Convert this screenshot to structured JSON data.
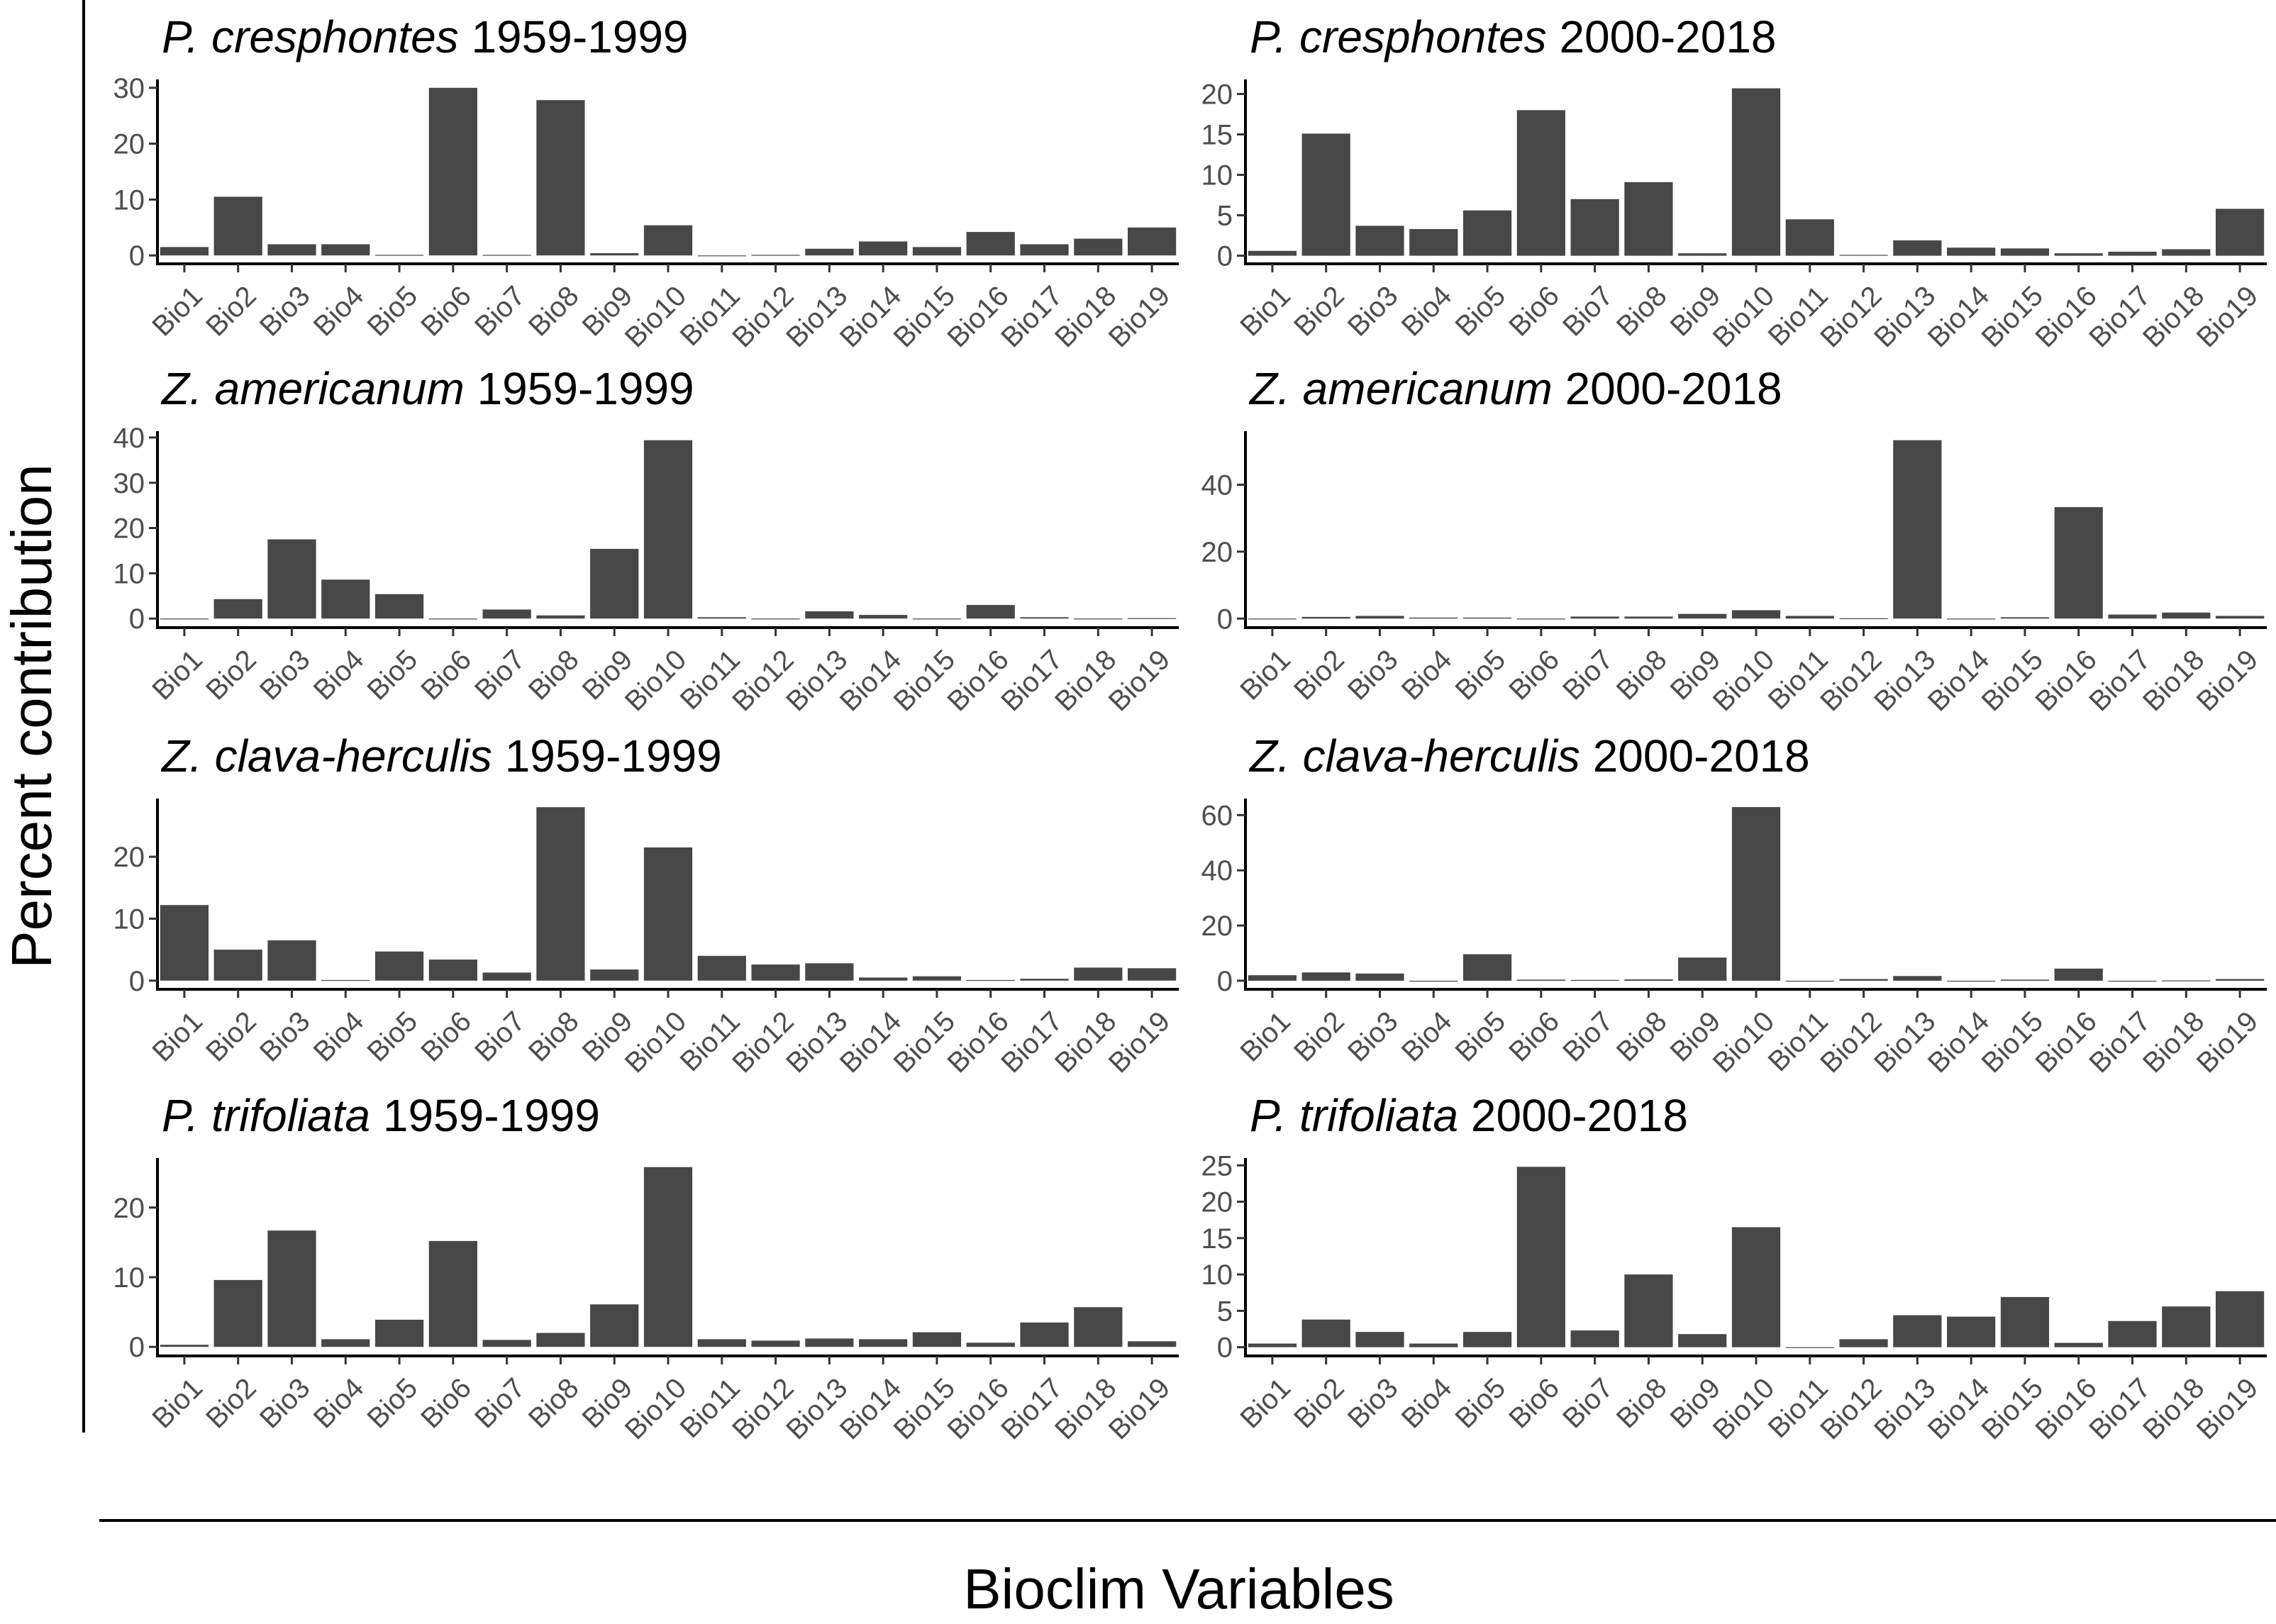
{
  "figure": {
    "ylabel": "Percent contribution",
    "xlabel": "Bioclim Variables",
    "bar_color": "#474747"
  },
  "chart_data": [
    {
      "type": "bar",
      "title_italic": "P. cresphontes",
      "title_rest": " 1959-1999",
      "categories": [
        "Bio1",
        "Bio2",
        "Bio3",
        "Bio4",
        "Bio5",
        "Bio6",
        "Bio7",
        "Bio8",
        "Bio9",
        "Bio10",
        "Bio11",
        "Bio12",
        "Bio13",
        "Bio14",
        "Bio15",
        "Bio16",
        "Bio17",
        "Bio18",
        "Bio19"
      ],
      "values": [
        1.5,
        10.5,
        2.0,
        2.0,
        0.1,
        30.0,
        0.1,
        27.8,
        0.4,
        5.4,
        0.0,
        0.1,
        1.2,
        2.5,
        1.5,
        4.2,
        2.0,
        3.0,
        5.0
      ],
      "yticks": [
        0,
        10,
        20,
        30
      ],
      "ylim": [
        -1.5,
        31.5
      ]
    },
    {
      "type": "bar",
      "title_italic": "P. cresphontes",
      "title_rest": " 2000-2018",
      "categories": [
        "Bio1",
        "Bio2",
        "Bio3",
        "Bio4",
        "Bio5",
        "Bio6",
        "Bio7",
        "Bio8",
        "Bio9",
        "Bio10",
        "Bio11",
        "Bio12",
        "Bio13",
        "Bio14",
        "Bio15",
        "Bio16",
        "Bio17",
        "Bio18",
        "Bio19"
      ],
      "values": [
        0.6,
        15.1,
        3.7,
        3.3,
        5.6,
        18.0,
        7.0,
        9.1,
        0.3,
        20.7,
        4.5,
        0.1,
        1.9,
        1.0,
        0.9,
        0.3,
        0.5,
        0.8,
        5.8
      ],
      "yticks": [
        0,
        5,
        10,
        15,
        20
      ],
      "ylim": [
        -1.0,
        21.8
      ]
    },
    {
      "type": "bar",
      "title_italic": "Z. americanum",
      "title_rest": " 1959-1999",
      "categories": [
        "Bio1",
        "Bio2",
        "Bio3",
        "Bio4",
        "Bio5",
        "Bio6",
        "Bio7",
        "Bio8",
        "Bio9",
        "Bio10",
        "Bio11",
        "Bio12",
        "Bio13",
        "Bio14",
        "Bio15",
        "Bio16",
        "Bio17",
        "Bio18",
        "Bio19"
      ],
      "values": [
        0.0,
        4.3,
        17.5,
        8.6,
        5.4,
        0.0,
        2.0,
        0.7,
        15.4,
        39.4,
        0.3,
        0.0,
        1.6,
        0.8,
        0.0,
        3.0,
        0.3,
        0.0,
        0.1
      ],
      "yticks": [
        0,
        10,
        20,
        30,
        40
      ],
      "ylim": [
        -2.0,
        41.4
      ]
    },
    {
      "type": "bar",
      "title_italic": "Z. americanum",
      "title_rest": " 2000-2018",
      "categories": [
        "Bio1",
        "Bio2",
        "Bio3",
        "Bio4",
        "Bio5",
        "Bio6",
        "Bio7",
        "Bio8",
        "Bio9",
        "Bio10",
        "Bio11",
        "Bio12",
        "Bio13",
        "Bio14",
        "Bio15",
        "Bio16",
        "Bio17",
        "Bio18",
        "Bio19"
      ],
      "values": [
        0.0,
        0.5,
        0.8,
        0.3,
        0.3,
        0.0,
        0.6,
        0.6,
        1.4,
        2.5,
        0.8,
        0.1,
        53.3,
        0.0,
        0.4,
        33.3,
        1.2,
        1.8,
        0.8
      ],
      "yticks": [
        0,
        20,
        40
      ],
      "ylim": [
        -2.7,
        56.0
      ]
    },
    {
      "type": "bar",
      "title_italic": "Z. clava-herculis",
      "title_rest": " 1959-1999",
      "categories": [
        "Bio1",
        "Bio2",
        "Bio3",
        "Bio4",
        "Bio5",
        "Bio6",
        "Bio7",
        "Bio8",
        "Bio9",
        "Bio10",
        "Bio11",
        "Bio12",
        "Bio13",
        "Bio14",
        "Bio15",
        "Bio16",
        "Bio17",
        "Bio18",
        "Bio19"
      ],
      "values": [
        12.2,
        5.0,
        6.5,
        0.1,
        4.7,
        3.4,
        1.3,
        28.0,
        1.8,
        21.5,
        4.0,
        2.6,
        2.8,
        0.5,
        0.7,
        0.1,
        0.3,
        2.1,
        2.0
      ],
      "yticks": [
        0,
        10,
        20
      ],
      "ylim": [
        -1.4,
        29.4
      ]
    },
    {
      "type": "bar",
      "title_italic": "Z. clava-herculis",
      "title_rest": " 2000-2018",
      "categories": [
        "Bio1",
        "Bio2",
        "Bio3",
        "Bio4",
        "Bio5",
        "Bio6",
        "Bio7",
        "Bio8",
        "Bio9",
        "Bio10",
        "Bio11",
        "Bio12",
        "Bio13",
        "Bio14",
        "Bio15",
        "Bio16",
        "Bio17",
        "Bio18",
        "Bio19"
      ],
      "values": [
        2.0,
        3.0,
        2.6,
        0.0,
        9.6,
        0.4,
        0.3,
        0.5,
        8.4,
        62.9,
        0.0,
        0.6,
        1.7,
        0.0,
        0.4,
        4.4,
        0.0,
        0.1,
        0.6
      ],
      "yticks": [
        0,
        20,
        40,
        60
      ],
      "ylim": [
        -3.1,
        66.0
      ]
    },
    {
      "type": "bar",
      "title_italic": "P. trifoliata",
      "title_rest": " 1959-1999",
      "categories": [
        "Bio1",
        "Bio2",
        "Bio3",
        "Bio4",
        "Bio5",
        "Bio6",
        "Bio7",
        "Bio8",
        "Bio9",
        "Bio10",
        "Bio11",
        "Bio12",
        "Bio13",
        "Bio14",
        "Bio15",
        "Bio16",
        "Bio17",
        "Bio18",
        "Bio19"
      ],
      "values": [
        0.3,
        9.6,
        16.7,
        1.1,
        3.9,
        15.2,
        1.0,
        2.0,
        6.1,
        25.8,
        1.1,
        0.9,
        1.2,
        1.1,
        2.1,
        0.6,
        3.5,
        5.7,
        0.8
      ],
      "yticks": [
        0,
        10,
        20
      ],
      "ylim": [
        -1.3,
        27.1
      ]
    },
    {
      "type": "bar",
      "title_italic": "P. trifoliata",
      "title_rest": " 2000-2018",
      "categories": [
        "Bio1",
        "Bio2",
        "Bio3",
        "Bio4",
        "Bio5",
        "Bio6",
        "Bio7",
        "Bio8",
        "Bio9",
        "Bio10",
        "Bio11",
        "Bio12",
        "Bio13",
        "Bio14",
        "Bio15",
        "Bio16",
        "Bio17",
        "Bio18",
        "Bio19"
      ],
      "values": [
        0.5,
        3.8,
        2.1,
        0.5,
        2.1,
        24.8,
        2.3,
        10.0,
        1.8,
        16.5,
        0.0,
        1.1,
        4.4,
        4.2,
        6.9,
        0.6,
        3.6,
        5.6,
        7.7
      ],
      "yticks": [
        0,
        5,
        10,
        15,
        20,
        25
      ],
      "ylim": [
        -1.2,
        26.0
      ]
    }
  ]
}
